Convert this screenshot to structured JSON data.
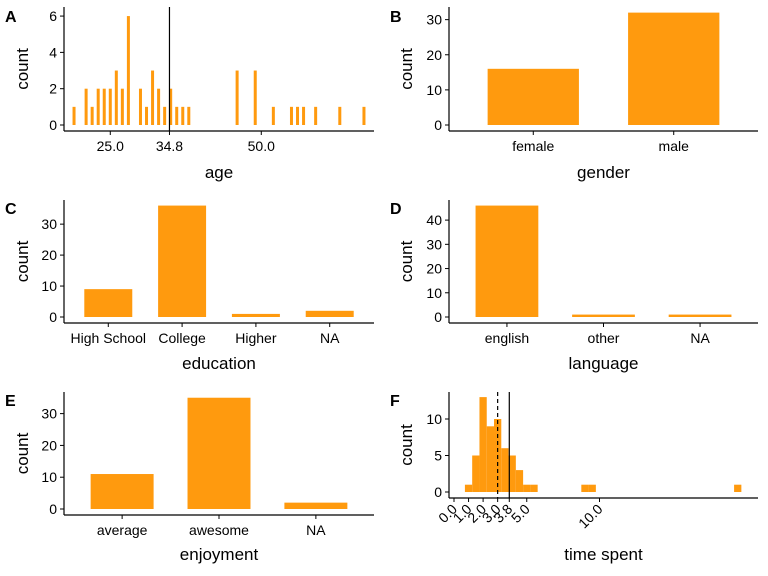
{
  "colors": {
    "bar": "#FF9A0E",
    "axis": "#000000"
  },
  "chart_data": [
    {
      "id": "A",
      "type": "bar",
      "tag": "A",
      "xlabel": "age",
      "ylabel": "count",
      "xlim": [
        18,
        68
      ],
      "ylim": [
        0,
        6.5
      ],
      "x_ticks": [
        "25.0",
        "34.8",
        "50.0"
      ],
      "y_ticks": [
        "0",
        "2",
        "4",
        "6"
      ],
      "bars": [
        {
          "x": 19,
          "y": 1
        },
        {
          "x": 21,
          "y": 2
        },
        {
          "x": 22,
          "y": 1
        },
        {
          "x": 23,
          "y": 2
        },
        {
          "x": 24,
          "y": 2
        },
        {
          "x": 25,
          "y": 2
        },
        {
          "x": 26,
          "y": 3
        },
        {
          "x": 27,
          "y": 2
        },
        {
          "x": 28,
          "y": 6
        },
        {
          "x": 30,
          "y": 2
        },
        {
          "x": 31,
          "y": 1
        },
        {
          "x": 32,
          "y": 3
        },
        {
          "x": 33,
          "y": 2
        },
        {
          "x": 34,
          "y": 1
        },
        {
          "x": 35,
          "y": 2
        },
        {
          "x": 36,
          "y": 1
        },
        {
          "x": 37,
          "y": 1
        },
        {
          "x": 38,
          "y": 1
        },
        {
          "x": 46,
          "y": 3
        },
        {
          "x": 49,
          "y": 3
        },
        {
          "x": 52,
          "y": 1
        },
        {
          "x": 55,
          "y": 1
        },
        {
          "x": 56,
          "y": 1
        },
        {
          "x": 57,
          "y": 1
        },
        {
          "x": 59,
          "y": 1
        },
        {
          "x": 63,
          "y": 1
        },
        {
          "x": 67,
          "y": 1
        }
      ],
      "vlines": [
        {
          "x": 34.8,
          "style": "solid"
        }
      ]
    },
    {
      "id": "B",
      "type": "bar",
      "tag": "B",
      "xlabel": "gender",
      "ylabel": "count",
      "categories": [
        "female",
        "male"
      ],
      "values": [
        16,
        32
      ],
      "ylim": [
        0,
        33.6
      ],
      "y_ticks": [
        "0",
        "10",
        "20",
        "30"
      ]
    },
    {
      "id": "C",
      "type": "bar",
      "tag": "C",
      "xlabel": "education",
      "ylabel": "count",
      "categories": [
        "High School",
        "College",
        "Higher",
        "NA"
      ],
      "values": [
        9,
        36,
        1,
        2
      ],
      "ylim": [
        0,
        37.8
      ],
      "y_ticks": [
        "0",
        "10",
        "20",
        "30"
      ]
    },
    {
      "id": "D",
      "type": "bar",
      "tag": "D",
      "xlabel": "language",
      "ylabel": "count",
      "categories": [
        "english",
        "other",
        "NA"
      ],
      "values": [
        46,
        1,
        1
      ],
      "ylim": [
        0,
        48.3
      ],
      "y_ticks": [
        "0",
        "10",
        "20",
        "30",
        "40"
      ]
    },
    {
      "id": "E",
      "type": "bar",
      "tag": "E",
      "xlabel": "enjoyment",
      "ylabel": "count",
      "categories": [
        "average",
        "awesome",
        "NA"
      ],
      "values": [
        11,
        35,
        2
      ],
      "ylim": [
        0,
        36.8
      ],
      "y_ticks": [
        "0",
        "10",
        "20",
        "30"
      ]
    },
    {
      "id": "F",
      "type": "bar",
      "tag": "F",
      "xlabel": "time spent",
      "ylabel": "count",
      "xlim": [
        0,
        20
      ],
      "ylim": [
        0,
        13.7
      ],
      "x_ticks": [
        "0.0",
        "1.0",
        "2.0",
        "3.0",
        "3.8",
        "5.0",
        "10.0"
      ],
      "y_ticks": [
        "0",
        "5",
        "10"
      ],
      "bars": [
        {
          "x": 1.0,
          "y": 1
        },
        {
          "x": 1.5,
          "y": 5
        },
        {
          "x": 2.0,
          "y": 13
        },
        {
          "x": 2.5,
          "y": 9
        },
        {
          "x": 3.0,
          "y": 10
        },
        {
          "x": 3.5,
          "y": 6
        },
        {
          "x": 4.0,
          "y": 5
        },
        {
          "x": 4.5,
          "y": 3
        },
        {
          "x": 5.0,
          "y": 1
        },
        {
          "x": 5.5,
          "y": 1
        },
        {
          "x": 9.0,
          "y": 1
        },
        {
          "x": 9.5,
          "y": 1
        },
        {
          "x": 19.5,
          "y": 1
        }
      ],
      "vlines": [
        {
          "x": 3.0,
          "style": "dashed"
        },
        {
          "x": 3.8,
          "style": "solid"
        }
      ]
    }
  ]
}
